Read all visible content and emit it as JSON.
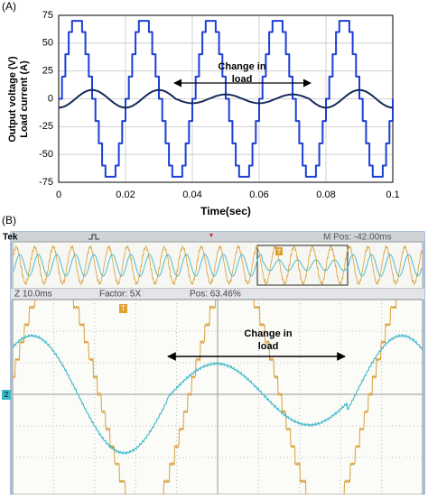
{
  "panel_labels": [
    "(A)",
    "(B)"
  ],
  "chart_data": {
    "type": "line",
    "ylabel": [
      "Output voltage (V)",
      "Load current (A)"
    ],
    "xlabel": "Time(sec)",
    "annotation": [
      "Change in",
      "load"
    ],
    "xlim": [
      0,
      0.1
    ],
    "xticks": [
      0,
      0.02,
      0.04,
      0.06,
      0.08,
      0.1
    ],
    "ylim": [
      -75,
      75
    ],
    "yticks": [
      -75,
      -50,
      -25,
      0,
      25,
      50,
      75
    ],
    "grid": true,
    "x": [
      0,
      0.001,
      0.002,
      0.003,
      0.004,
      0.005,
      0.006,
      0.007,
      0.008,
      0.009,
      0.01,
      0.011,
      0.012,
      0.013,
      0.014,
      0.015,
      0.016,
      0.017,
      0.018,
      0.019,
      0.02,
      0.021,
      0.022,
      0.023,
      0.024,
      0.025,
      0.026,
      0.027,
      0.028,
      0.029,
      0.03,
      0.031,
      0.032,
      0.033,
      0.034,
      0.035,
      0.036,
      0.037,
      0.038,
      0.039,
      0.04,
      0.041,
      0.042,
      0.043,
      0.044,
      0.045,
      0.046,
      0.047,
      0.048,
      0.049,
      0.05,
      0.051,
      0.052,
      0.053,
      0.054,
      0.055,
      0.056,
      0.057,
      0.058,
      0.059,
      0.06,
      0.061,
      0.062,
      0.063,
      0.064,
      0.065,
      0.066,
      0.067,
      0.068,
      0.069,
      0.07,
      0.071,
      0.072,
      0.073,
      0.074,
      0.075,
      0.076,
      0.077,
      0.078,
      0.079,
      0.08,
      0.081,
      0.082,
      0.083,
      0.084,
      0.085,
      0.086,
      0.087,
      0.088,
      0.089,
      0.09,
      0.091,
      0.092,
      0.093,
      0.094,
      0.095,
      0.096,
      0.097,
      0.098,
      0.099,
      0.1
    ],
    "series": [
      {
        "color": "#1c3fd6",
        "step": "post",
        "width": 2,
        "values": [
          0,
          20,
          40,
          60,
          70,
          70,
          70,
          60,
          40,
          20,
          0,
          -20,
          -40,
          -60,
          -70,
          -70,
          -70,
          -60,
          -40,
          -20,
          0,
          20,
          40,
          60,
          70,
          70,
          70,
          60,
          40,
          20,
          0,
          -20,
          -40,
          -60,
          -70,
          -70,
          -70,
          -60,
          -40,
          -20,
          0,
          20,
          40,
          60,
          70,
          70,
          70,
          60,
          40,
          20,
          0,
          -20,
          -40,
          -60,
          -70,
          -70,
          -70,
          -60,
          -40,
          -20,
          0,
          20,
          40,
          60,
          70,
          70,
          70,
          60,
          40,
          20,
          0,
          -20,
          -40,
          -60,
          -70,
          -70,
          -70,
          -60,
          -40,
          -20,
          0,
          20,
          40,
          60,
          70,
          70,
          70,
          60,
          40,
          20,
          0,
          -20,
          -40,
          -60,
          -70,
          -70,
          -70,
          -60,
          -40,
          -20,
          0
        ]
      },
      {
        "color": "#15295a",
        "width": 2,
        "values": [
          -8,
          -7.6,
          -6.5,
          -4.7,
          -2.5,
          0,
          2.5,
          4.7,
          6.5,
          7.6,
          8,
          7.6,
          6.5,
          4.7,
          2.5,
          0,
          -2.5,
          -4.7,
          -6.5,
          -7.6,
          -8,
          -7.6,
          -6.5,
          -4.7,
          -2.5,
          0,
          2.5,
          4.7,
          6.5,
          7.6,
          8,
          7.6,
          6.5,
          4.7,
          2.5,
          0,
          -1.2,
          -2.4,
          -3.2,
          -3.8,
          -4,
          -3.8,
          -3.2,
          -2.4,
          -1.2,
          0,
          1.2,
          2.4,
          3.2,
          3.8,
          4,
          3.8,
          3.2,
          2.4,
          1.2,
          0,
          -1.2,
          -2.4,
          -3.2,
          -3.8,
          -4,
          -3.8,
          -3.2,
          -2.4,
          -1.2,
          0,
          1.2,
          2.4,
          3.2,
          3.8,
          4,
          3.8,
          3.2,
          2.4,
          1.2,
          0,
          -2.5,
          -4.7,
          -6.5,
          -7.6,
          -8,
          -7.6,
          -6.5,
          -4.7,
          -2.5,
          0,
          2.5,
          4.7,
          6.5,
          7.6,
          8,
          7.6,
          6.5,
          4.7,
          2.5,
          0,
          -2.5,
          -4.7,
          -6.5,
          -7.6,
          -8
        ]
      }
    ]
  },
  "scope": {
    "brand": "Tek",
    "m_pos": "M Pos: -42.00ms",
    "zoom": "Z 10.0ms",
    "factor": "Factor: 5X",
    "pos": "Pos: 63.46%",
    "trigger": "T",
    "channel": "2",
    "annotation": [
      "Change in",
      "load"
    ]
  }
}
